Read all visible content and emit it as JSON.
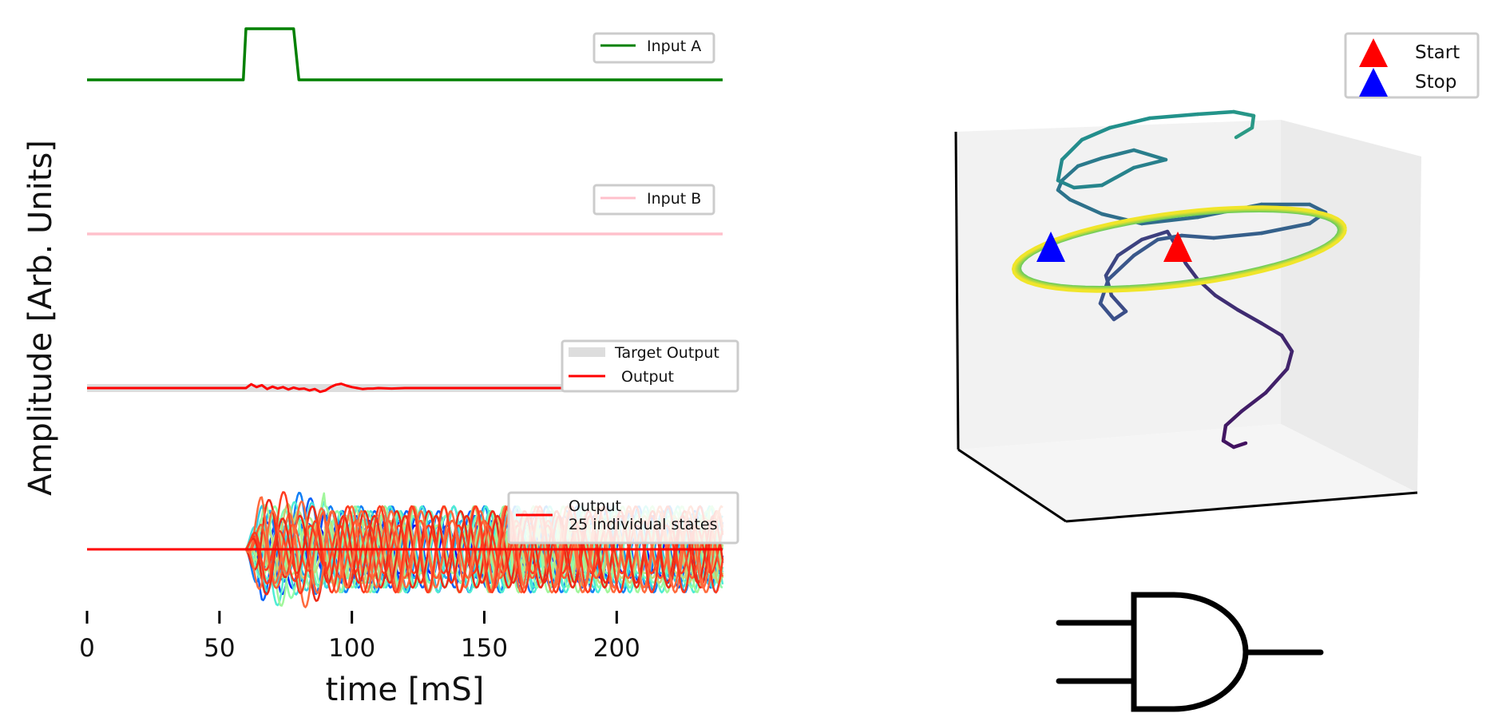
{
  "chart_data": [
    {
      "type": "line",
      "panel": "input-a",
      "x_range": [
        0,
        240
      ],
      "series": [
        {
          "name": "Input A",
          "color": "#008000",
          "x": [
            0,
            59,
            60,
            78,
            80,
            240
          ],
          "y": [
            0,
            0,
            1,
            1,
            0,
            0
          ]
        }
      ],
      "legend": "top-right"
    },
    {
      "type": "line",
      "panel": "input-b",
      "x_range": [
        0,
        240
      ],
      "series": [
        {
          "name": "Input B",
          "color": "#ffc0cb",
          "x": [
            0,
            240
          ],
          "y": [
            0,
            0
          ]
        }
      ],
      "legend": "top-right"
    },
    {
      "type": "line",
      "panel": "output",
      "x_range": [
        0,
        240
      ],
      "series": [
        {
          "name": "Target Output",
          "color": "#dddddd",
          "x": [
            0,
            240
          ],
          "y": [
            0,
            0
          ]
        },
        {
          "name": "Output",
          "color": "#ff0000",
          "x": [
            0,
            60,
            62,
            64,
            66,
            68,
            70,
            72,
            74,
            76,
            78,
            80,
            82,
            84,
            86,
            88,
            90,
            92,
            94,
            96,
            98,
            100,
            102,
            104,
            106,
            108,
            110,
            115,
            120,
            130,
            140,
            160,
            180,
            200,
            220,
            240
          ],
          "y": [
            0,
            0,
            0.08,
            0.02,
            0.06,
            -0.02,
            0.03,
            -0.01,
            0.02,
            -0.03,
            0.01,
            -0.02,
            -0.01,
            -0.05,
            -0.02,
            -0.08,
            -0.05,
            0.02,
            0.07,
            0.09,
            0.05,
            0.02,
            0.0,
            -0.02,
            -0.01,
            -0.01,
            0.0,
            -0.01,
            0.0,
            0.0,
            0.0,
            0.0,
            0.0,
            0.0,
            0.0,
            0.0
          ]
        }
      ],
      "legend": "right"
    },
    {
      "type": "line",
      "panel": "states",
      "x_range": [
        0,
        240
      ],
      "xticks": [
        0,
        50,
        100,
        150,
        200
      ],
      "xlabel": "time [mS]",
      "ylabel": "Amplitude [Arb. Units]",
      "onset": 60,
      "n_states": 25,
      "colormap": "rainbow",
      "series": [
        {
          "name": "Output\n25 individual states",
          "color": "#ff0000"
        }
      ],
      "legend": "top-right"
    },
    {
      "type": "scatter",
      "panel": "trajectory-3d",
      "series": [
        {
          "name": "Start",
          "color": "#ff0000",
          "marker": "triangle"
        },
        {
          "name": "Stop",
          "color": "#0000ff",
          "marker": "triangle"
        }
      ],
      "colormap": "viridis",
      "legend": "top-right"
    }
  ],
  "icons": {
    "and_gate": "and-gate-icon"
  }
}
